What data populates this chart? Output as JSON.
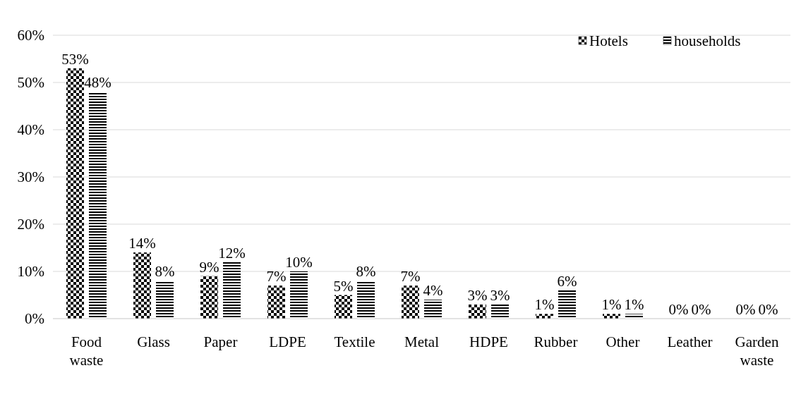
{
  "chart_data": {
    "type": "bar",
    "categories": [
      "Food waste",
      "Glass",
      "Paper",
      "LDPE",
      "Textile",
      "Metal",
      "HDPE",
      "Rubber",
      "Other",
      "Leather",
      "Garden waste"
    ],
    "series": [
      {
        "name": "Hotels",
        "color": "#000000",
        "values": [
          53,
          14,
          9,
          7,
          5,
          7,
          3,
          1,
          1,
          0,
          0
        ],
        "value_labels": [
          "53%",
          "14%",
          "9%",
          "7%",
          "5%",
          "7%",
          "3%",
          "1%",
          "1%",
          "0%",
          "0%"
        ]
      },
      {
        "name": "households",
        "color": "#000000",
        "values": [
          48,
          8,
          12,
          10,
          8,
          4,
          3,
          6,
          1,
          0,
          0
        ],
        "value_labels": [
          "48%",
          "8%",
          "12%",
          "10%",
          "8%",
          "4%",
          "3%",
          "6%",
          "1%",
          "0%",
          "0%"
        ]
      }
    ],
    "ylim": [
      0,
      60
    ],
    "yticks": [
      {
        "value": 0,
        "label": "0%"
      },
      {
        "value": 10,
        "label": "10%"
      },
      {
        "value": 20,
        "label": "20%"
      },
      {
        "value": 30,
        "label": "30%"
      },
      {
        "value": 40,
        "label": "40%"
      },
      {
        "value": 50,
        "label": "50%"
      },
      {
        "value": 60,
        "label": "60%"
      }
    ],
    "grid": "y",
    "legend": "top right"
  }
}
